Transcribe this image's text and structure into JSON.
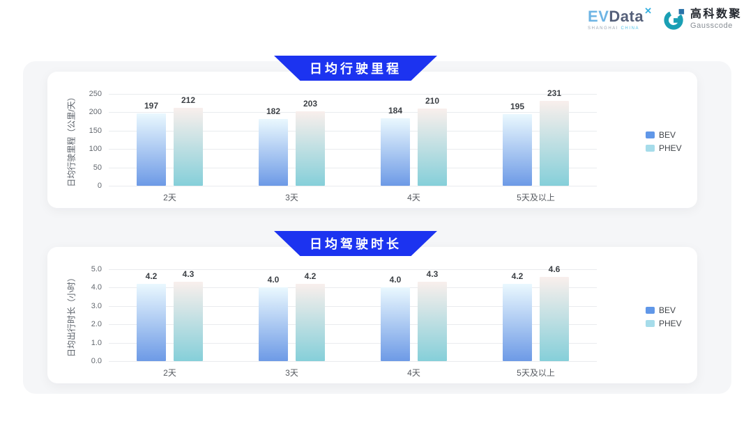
{
  "header": {
    "evdata_logo": {
      "ev": "EV",
      "data": "Data",
      "mark": "✕",
      "tagline_1": "SHANGHAI",
      "tagline_2": "CHINA"
    },
    "gausscode_logo": {
      "cn": "高科数聚",
      "en": "Gausscode"
    }
  },
  "colors": {
    "banner_blue": "#1c33f0",
    "bev_gradient_top": "#eaf8fe",
    "bev_gradient_bottom": "#6d9ae6",
    "phev_gradient_top": "#f9efec",
    "phev_gradient_bottom": "#85cfd9",
    "legend_bev": "#6097e8",
    "legend_phev": "#a6dcea",
    "gausscode_teal": "#1a9fb4",
    "gausscode_dark": "#2b72a8"
  },
  "chart_data": [
    {
      "type": "bar",
      "title": "日均行驶里程",
      "ylabel": "日均行驶里程（公里/天）",
      "categories": [
        "2天",
        "3天",
        "4天",
        "5天及以上"
      ],
      "series": [
        {
          "name": "BEV",
          "values": [
            197,
            182,
            184,
            195
          ],
          "labels": [
            "197",
            "182",
            "184",
            "195"
          ]
        },
        {
          "name": "PHEV",
          "values": [
            212,
            203,
            210,
            231
          ],
          "labels": [
            "212",
            "203",
            "210",
            "231"
          ]
        }
      ],
      "ylim": [
        0,
        250
      ],
      "yticks": [
        {
          "v": 0,
          "label": "0"
        },
        {
          "v": 50,
          "label": "50"
        },
        {
          "v": 100,
          "label": "100"
        },
        {
          "v": 150,
          "label": "150"
        },
        {
          "v": 200,
          "label": "200"
        },
        {
          "v": 250,
          "label": "250"
        }
      ],
      "legend": [
        "BEV",
        "PHEV"
      ],
      "legend_position": "right",
      "grid": true
    },
    {
      "type": "bar",
      "title": "日均驾驶时长",
      "ylabel": "日均出行时长（小时）",
      "categories": [
        "2天",
        "3天",
        "4天",
        "5天及以上"
      ],
      "series": [
        {
          "name": "BEV",
          "values": [
            4.2,
            4.0,
            4.0,
            4.2
          ],
          "labels": [
            "4.2",
            "4.0",
            "4.0",
            "4.2"
          ]
        },
        {
          "name": "PHEV",
          "values": [
            4.3,
            4.2,
            4.3,
            4.6
          ],
          "labels": [
            "4.3",
            "4.2",
            "4.3",
            "4.6"
          ]
        }
      ],
      "ylim": [
        0,
        5
      ],
      "yticks": [
        {
          "v": 0,
          "label": "0.0"
        },
        {
          "v": 1,
          "label": "1.0"
        },
        {
          "v": 2,
          "label": "2.0"
        },
        {
          "v": 3,
          "label": "3.0"
        },
        {
          "v": 4,
          "label": "4.0"
        },
        {
          "v": 5,
          "label": "5.0"
        }
      ],
      "legend": [
        "BEV",
        "PHEV"
      ],
      "legend_position": "right",
      "grid": true
    }
  ]
}
